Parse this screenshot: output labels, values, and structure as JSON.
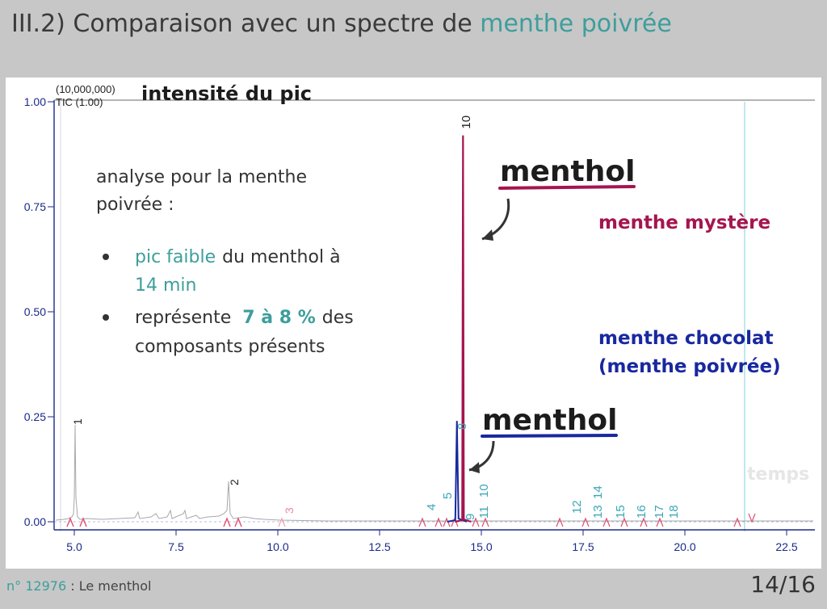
{
  "slide": {
    "title_prefix": "III.2) Comparaison avec un spectre de",
    "title_accent": "menthe poivrée",
    "footer_number": "n° 12976",
    "footer_text": ": Le menthol",
    "page": "14/16"
  },
  "colors": {
    "accent": "#3d9e9c",
    "mystery": "#a5154f",
    "chocolate": "#1828a0",
    "grey_trace": "#9a9a9a",
    "marker": "#e05070",
    "peak_label": "#3aa6b8"
  },
  "chart_data": {
    "type": "line",
    "ylabel": "intensité du pic",
    "scale_text": "(10,000,000)",
    "tic_text": "TIC (1.00)",
    "x_ticks": [
      "5.0",
      "7.5",
      "10.0",
      "12.5",
      "15.0",
      "17.5",
      "20.0",
      "22.5"
    ],
    "y_ticks": [
      "0.00",
      "0.25",
      "0.50",
      "0.75",
      "1.00"
    ],
    "xlim": [
      4.5,
      23.5
    ],
    "ylim": [
      0,
      1.0
    ],
    "series": [
      {
        "name": "menthe mystère",
        "peaks": [
          {
            "x": 14.55,
            "y": 0.92
          }
        ]
      },
      {
        "name": "menthe chocolat (menthe poivrée)",
        "peaks": [
          {
            "x": 14.4,
            "y": 0.24
          }
        ]
      }
    ],
    "grey_peaks": [
      {
        "label": "1",
        "x": 4.9,
        "y": 0.23
      },
      {
        "label": "2",
        "x": 8.8,
        "y": 0.09
      }
    ],
    "peak_labels_dark": [
      {
        "text": "10",
        "x": 14.6
      }
    ],
    "peak_labels_teal": [
      "4",
      "5",
      "8",
      "9",
      "10",
      "11",
      "12",
      "14",
      "13",
      "15",
      "16",
      "17",
      "18"
    ],
    "faint_labels": [
      "3",
      "temps"
    ],
    "annotations": {
      "note_intro": "analyse pour la menthe poivrée :",
      "bullet1_accent": "pic faible",
      "bullet1_rest": "du menthol à",
      "bullet1_end": "14 min",
      "bullet2_start": "représente",
      "bullet2_accent": "7 à 8 %",
      "bullet2_rest": "des composants présents",
      "menthol_top": "menthol",
      "menthol_bottom": "menthol",
      "legend_mystery": "menthe mystère",
      "legend_choco_line1": "menthe chocolat",
      "legend_choco_line2": "(menthe poivrée)"
    }
  }
}
